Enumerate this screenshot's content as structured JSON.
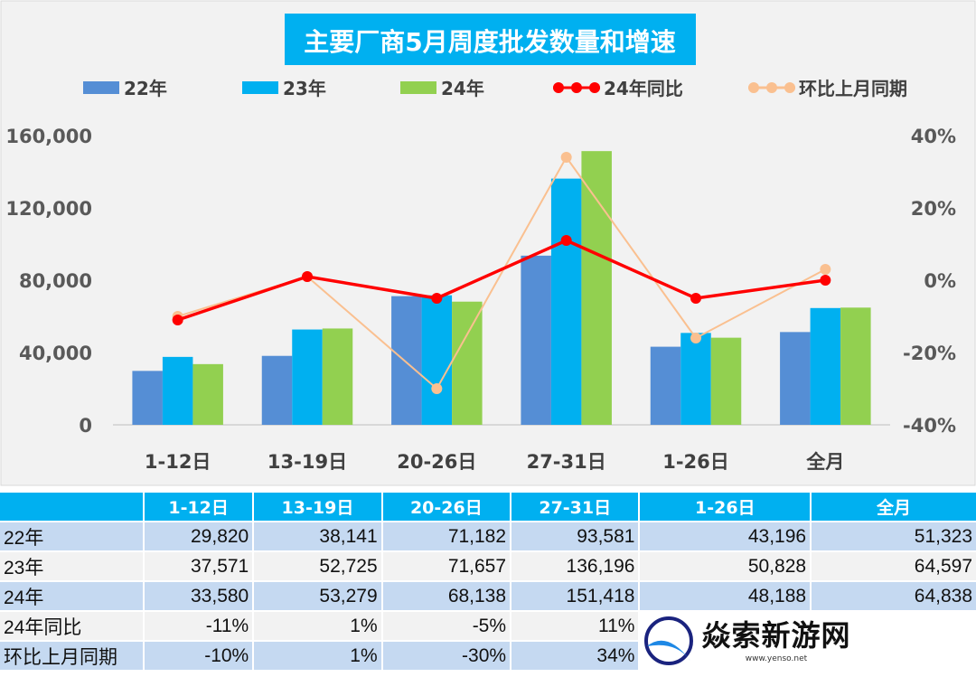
{
  "chart_data": {
    "type": "bar",
    "title": "主要厂商5月周度批发数量和增速",
    "categories": [
      "1-12日",
      "13-19日",
      "20-26日",
      "27-31日",
      "1-26日",
      "全月"
    ],
    "series": [
      {
        "name": "22年",
        "type": "bar",
        "axis": "left",
        "color": "#558ed5",
        "values": [
          29820,
          38141,
          71182,
          93581,
          43196,
          51323
        ]
      },
      {
        "name": "23年",
        "type": "bar",
        "axis": "left",
        "color": "#00b0f0",
        "values": [
          37571,
          52725,
          71657,
          136196,
          50828,
          64597
        ]
      },
      {
        "name": "24年",
        "type": "bar",
        "axis": "left",
        "color": "#92d050",
        "values": [
          33580,
          53279,
          68138,
          151418,
          48188,
          64838
        ]
      },
      {
        "name": "24年同比",
        "type": "line",
        "axis": "right",
        "color": "#ff0000",
        "values": [
          -11,
          1,
          -5,
          11,
          -5,
          0
        ]
      },
      {
        "name": "环比上月同期",
        "type": "line",
        "axis": "right",
        "color": "#fac090",
        "values": [
          -10,
          1,
          -30,
          34,
          -16,
          3
        ]
      }
    ],
    "left_axis": {
      "ylim": [
        0,
        160000
      ],
      "ticks": [
        "0",
        "40,000",
        "80,000",
        "120,000",
        "160,000"
      ]
    },
    "right_axis": {
      "ylim": [
        -40,
        40
      ],
      "ticks": [
        "-40%",
        "-20%",
        "0%",
        "20%",
        "40%"
      ]
    },
    "legend": "top",
    "grid": false
  },
  "table": {
    "headers": [
      "1-12日",
      "13-19日",
      "20-26日",
      "27-31日",
      "1-26日",
      "全月"
    ],
    "rows": [
      {
        "label": "22年",
        "cells": [
          "29,820",
          "38,141",
          "71,182",
          "93,581",
          "43,196",
          "51,323"
        ]
      },
      {
        "label": "23年",
        "cells": [
          "37,571",
          "52,725",
          "71,657",
          "136,196",
          "50,828",
          "64,597"
        ]
      },
      {
        "label": "24年",
        "cells": [
          "33,580",
          "53,279",
          "68,138",
          "151,418",
          "48,188",
          "64,838"
        ]
      },
      {
        "label": "24年同比",
        "cells": [
          "-11%",
          "1%",
          "-5%",
          "11%",
          "",
          ""
        ]
      },
      {
        "label": "环比上月同期",
        "cells": [
          "-10%",
          "1%",
          "-30%",
          "34%",
          "",
          ""
        ]
      }
    ]
  },
  "watermark": {
    "text": "焱索新游网",
    "url": "www.yenso.net"
  }
}
